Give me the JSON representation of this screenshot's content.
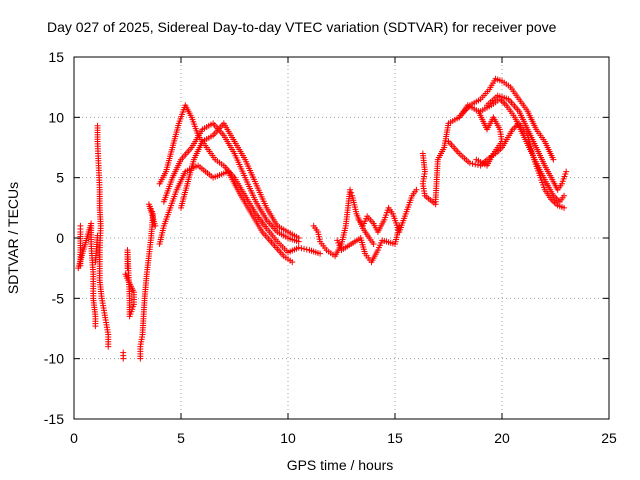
{
  "chart_data": {
    "type": "scatter",
    "title": "Day 027 of 2025, Sidereal Day-to-day VTEC variation (SDTVAR) for receiver pove",
    "xlabel": "GPS time / hours",
    "ylabel": "SDTVAR / TECUs",
    "xlim": [
      0,
      25
    ],
    "ylim": [
      -15,
      15
    ],
    "xticks": [
      0,
      5,
      10,
      15,
      20,
      25
    ],
    "yticks": [
      -15,
      -10,
      -5,
      0,
      5,
      10,
      15
    ],
    "grid": true,
    "marker": "+",
    "color": "#ff0000",
    "tracks": [
      {
        "name": "scatter-early-1",
        "points": [
          [
            0.3,
            1.0
          ],
          [
            0.3,
            0.5
          ],
          [
            0.3,
            -2.3
          ],
          [
            0.2,
            -2.5
          ],
          [
            0.8,
            1.2
          ],
          [
            0.8,
            -0.5
          ],
          [
            0.9,
            -3.0
          ],
          [
            0.9,
            -5.0
          ],
          [
            1.0,
            -6.5
          ],
          [
            1.0,
            -7.3
          ],
          [
            1.0,
            -2.0
          ],
          [
            1.1,
            0.2
          ]
        ]
      },
      {
        "name": "scatter-early-2",
        "points": [
          [
            1.1,
            9.3
          ],
          [
            1.1,
            8.0
          ],
          [
            1.15,
            6.0
          ],
          [
            1.2,
            4.0
          ],
          [
            1.2,
            2.5
          ],
          [
            1.25,
            1.0
          ],
          [
            1.2,
            -1.0
          ],
          [
            1.2,
            -3.5
          ],
          [
            1.3,
            -5.0
          ],
          [
            1.4,
            -6.0
          ],
          [
            1.5,
            -7.0
          ],
          [
            1.6,
            -8.0
          ],
          [
            1.6,
            -9.0
          ]
        ]
      },
      {
        "name": "scatter-early-3",
        "points": [
          [
            2.3,
            -9.5
          ],
          [
            2.3,
            -10.0
          ],
          [
            2.5,
            -2.5
          ],
          [
            2.5,
            -1.0
          ],
          [
            2.6,
            -5.0
          ],
          [
            2.6,
            -6.5
          ],
          [
            2.8,
            -5.5
          ],
          [
            2.8,
            -4.5
          ],
          [
            2.4,
            -3.0
          ]
        ]
      },
      {
        "name": "scatter-early-4",
        "points": [
          [
            3.1,
            -10.0
          ],
          [
            3.1,
            -9.0
          ],
          [
            3.2,
            -8.0
          ],
          [
            3.3,
            -5.0
          ],
          [
            3.4,
            -3.0
          ],
          [
            3.5,
            -1.5
          ],
          [
            3.6,
            0.0
          ],
          [
            3.7,
            2.0
          ],
          [
            3.5,
            2.8
          ],
          [
            3.8,
            1.0
          ]
        ]
      },
      {
        "name": "arc-a",
        "points": [
          [
            4.0,
            4.5
          ],
          [
            4.3,
            5.5
          ],
          [
            4.6,
            7.5
          ],
          [
            4.9,
            9.5
          ],
          [
            5.2,
            11.0
          ],
          [
            5.5,
            10.0
          ],
          [
            5.8,
            8.5
          ],
          [
            6.2,
            7.5
          ],
          [
            6.6,
            6.5
          ],
          [
            7.0,
            6.0
          ],
          [
            7.5,
            5.0
          ],
          [
            8.0,
            3.5
          ],
          [
            8.5,
            2.0
          ],
          [
            9.0,
            0.8
          ],
          [
            9.5,
            -0.3
          ],
          [
            10.0,
            -1.2
          ],
          [
            10.5,
            -0.8
          ],
          [
            11.0,
            -1.0
          ],
          [
            11.5,
            -1.3
          ]
        ]
      },
      {
        "name": "arc-b",
        "points": [
          [
            4.2,
            3.0
          ],
          [
            4.6,
            5.0
          ],
          [
            5.0,
            6.5
          ],
          [
            5.5,
            7.5
          ],
          [
            6.0,
            9.0
          ],
          [
            6.5,
            9.5
          ],
          [
            7.0,
            8.5
          ],
          [
            7.5,
            7.0
          ],
          [
            8.0,
            5.0
          ],
          [
            8.5,
            3.0
          ],
          [
            9.0,
            1.5
          ],
          [
            9.5,
            0.5
          ],
          [
            10.0,
            0.0
          ],
          [
            10.5,
            -0.3
          ]
        ]
      },
      {
        "name": "arc-c",
        "points": [
          [
            4.0,
            -0.5
          ],
          [
            4.2,
            1.0
          ],
          [
            4.5,
            2.5
          ],
          [
            4.8,
            4.0
          ],
          [
            5.2,
            5.5
          ],
          [
            5.8,
            6.0
          ],
          [
            6.5,
            5.0
          ],
          [
            7.2,
            5.5
          ],
          [
            7.8,
            3.5
          ],
          [
            8.3,
            2.0
          ],
          [
            8.8,
            0.5
          ],
          [
            9.3,
            -0.5
          ],
          [
            9.8,
            -1.5
          ],
          [
            10.2,
            -2.0
          ]
        ]
      },
      {
        "name": "arc-d",
        "points": [
          [
            5.0,
            2.5
          ],
          [
            5.3,
            4.5
          ],
          [
            5.6,
            6.5
          ],
          [
            6.0,
            8.0
          ],
          [
            6.5,
            8.5
          ],
          [
            7.0,
            9.5
          ],
          [
            7.5,
            8.0
          ],
          [
            8.0,
            6.5
          ],
          [
            8.5,
            4.5
          ],
          [
            9.0,
            2.5
          ],
          [
            9.5,
            1.0
          ],
          [
            10.0,
            0.5
          ],
          [
            10.5,
            0.0
          ]
        ]
      },
      {
        "name": "middle-1",
        "points": [
          [
            11.2,
            1.0
          ],
          [
            11.4,
            0.5
          ],
          [
            11.5,
            -0.3
          ],
          [
            11.8,
            -1.0
          ],
          [
            12.2,
            -1.5
          ],
          [
            12.5,
            -0.5
          ],
          [
            12.7,
            1.0
          ],
          [
            12.8,
            2.5
          ],
          [
            12.9,
            4.0
          ],
          [
            13.0,
            3.5
          ],
          [
            13.2,
            2.0
          ],
          [
            13.5,
            0.8
          ],
          [
            13.8,
            0.0
          ],
          [
            14.0,
            -0.5
          ]
        ]
      },
      {
        "name": "middle-2",
        "points": [
          [
            13.3,
            1.5
          ],
          [
            13.5,
            1.0
          ],
          [
            13.7,
            1.8
          ],
          [
            14.0,
            1.2
          ],
          [
            14.2,
            0.5
          ],
          [
            14.5,
            1.5
          ],
          [
            14.7,
            2.5
          ],
          [
            14.9,
            2.0
          ],
          [
            15.2,
            0.5
          ],
          [
            15.5,
            2.0
          ],
          [
            15.8,
            3.5
          ],
          [
            16.0,
            4.0
          ]
        ]
      },
      {
        "name": "middle-3",
        "points": [
          [
            12.3,
            -0.2
          ],
          [
            12.5,
            -1.0
          ],
          [
            13.4,
            0.0
          ],
          [
            13.6,
            -1.3
          ],
          [
            13.9,
            -2.0
          ],
          [
            14.2,
            -1.0
          ],
          [
            14.4,
            -0.2
          ],
          [
            15.0,
            -0.5
          ],
          [
            15.2,
            1.0
          ]
        ]
      },
      {
        "name": "late-a",
        "points": [
          [
            16.3,
            7.0
          ],
          [
            16.4,
            5.5
          ],
          [
            16.3,
            4.5
          ],
          [
            16.4,
            3.5
          ],
          [
            16.9,
            2.8
          ],
          [
            16.9,
            3.2
          ],
          [
            17.0,
            6.5
          ],
          [
            17.3,
            7.5
          ],
          [
            17.5,
            9.5
          ],
          [
            18.0,
            10.0
          ],
          [
            18.5,
            11.0
          ],
          [
            19.0,
            11.5
          ],
          [
            19.4,
            12.3
          ],
          [
            19.7,
            13.2
          ],
          [
            20.0,
            13.0
          ],
          [
            20.4,
            12.5
          ],
          [
            20.8,
            11.5
          ],
          [
            21.2,
            10.5
          ],
          [
            21.6,
            9.0
          ],
          [
            22.0,
            8.0
          ],
          [
            22.4,
            6.5
          ]
        ]
      },
      {
        "name": "late-b",
        "points": [
          [
            17.5,
            8.0
          ],
          [
            18.0,
            7.0
          ],
          [
            18.5,
            6.2
          ],
          [
            19.0,
            6.0
          ],
          [
            19.3,
            6.5
          ],
          [
            19.7,
            7.0
          ],
          [
            20.0,
            7.5
          ],
          [
            20.5,
            9.0
          ],
          [
            20.8,
            9.5
          ],
          [
            21.2,
            8.5
          ],
          [
            21.5,
            6.5
          ],
          [
            21.8,
            5.0
          ],
          [
            22.0,
            4.0
          ],
          [
            22.3,
            3.2
          ],
          [
            22.6,
            2.7
          ],
          [
            22.9,
            2.5
          ]
        ]
      },
      {
        "name": "late-c",
        "points": [
          [
            19.0,
            10.5
          ],
          [
            19.5,
            11.0
          ],
          [
            19.9,
            11.5
          ],
          [
            20.2,
            11.0
          ],
          [
            20.6,
            10.0
          ],
          [
            21.0,
            8.5
          ],
          [
            21.4,
            7.0
          ],
          [
            21.8,
            5.5
          ],
          [
            22.1,
            4.5
          ],
          [
            22.4,
            3.5
          ],
          [
            22.7,
            3.0
          ],
          [
            22.9,
            3.5
          ]
        ]
      },
      {
        "name": "late-d",
        "points": [
          [
            19.3,
            11.0
          ],
          [
            19.8,
            11.8
          ],
          [
            20.3,
            11.5
          ],
          [
            20.8,
            10.5
          ],
          [
            21.2,
            9.0
          ],
          [
            21.6,
            7.5
          ],
          [
            22.0,
            6.0
          ],
          [
            22.3,
            5.0
          ],
          [
            22.6,
            4.0
          ],
          [
            22.8,
            4.5
          ],
          [
            23.0,
            5.5
          ]
        ]
      },
      {
        "name": "late-e",
        "points": [
          [
            18.0,
            10.0
          ],
          [
            18.4,
            11.0
          ],
          [
            18.9,
            10.5
          ],
          [
            19.3,
            9.0
          ],
          [
            19.6,
            10.0
          ],
          [
            19.9,
            9.0
          ],
          [
            20.0,
            8.0
          ],
          [
            19.6,
            7.0
          ],
          [
            19.3,
            6.0
          ],
          [
            18.8,
            6.5
          ]
        ]
      }
    ]
  }
}
